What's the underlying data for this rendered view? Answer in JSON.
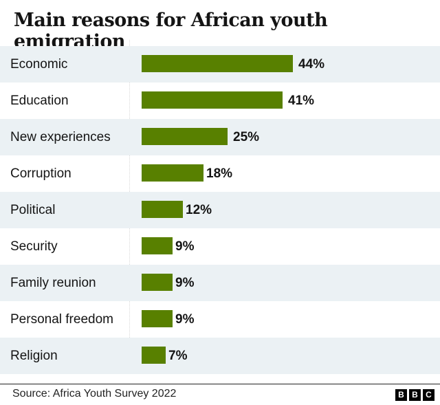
{
  "chart_data": {
    "type": "bar",
    "orientation": "horizontal",
    "title": "Main reasons for African youth emigration",
    "categories": [
      "Economic",
      "Education",
      "New experiences",
      "Corruption",
      "Political",
      "Security",
      "Family reunion",
      "Personal freedom",
      "Religion"
    ],
    "values": [
      44,
      41,
      25,
      18,
      12,
      9,
      9,
      9,
      7
    ],
    "value_labels": [
      "44%",
      "41%",
      "25%",
      "18%",
      "12%",
      "9%",
      "9%",
      "9%",
      "7%"
    ],
    "unit": "%",
    "bar_color": "#588000",
    "row_shade_color": "#ebf1f4",
    "grid": false
  },
  "footer": {
    "source": "Source: Africa Youth Survey 2022",
    "logo": [
      "B",
      "B",
      "C"
    ]
  }
}
